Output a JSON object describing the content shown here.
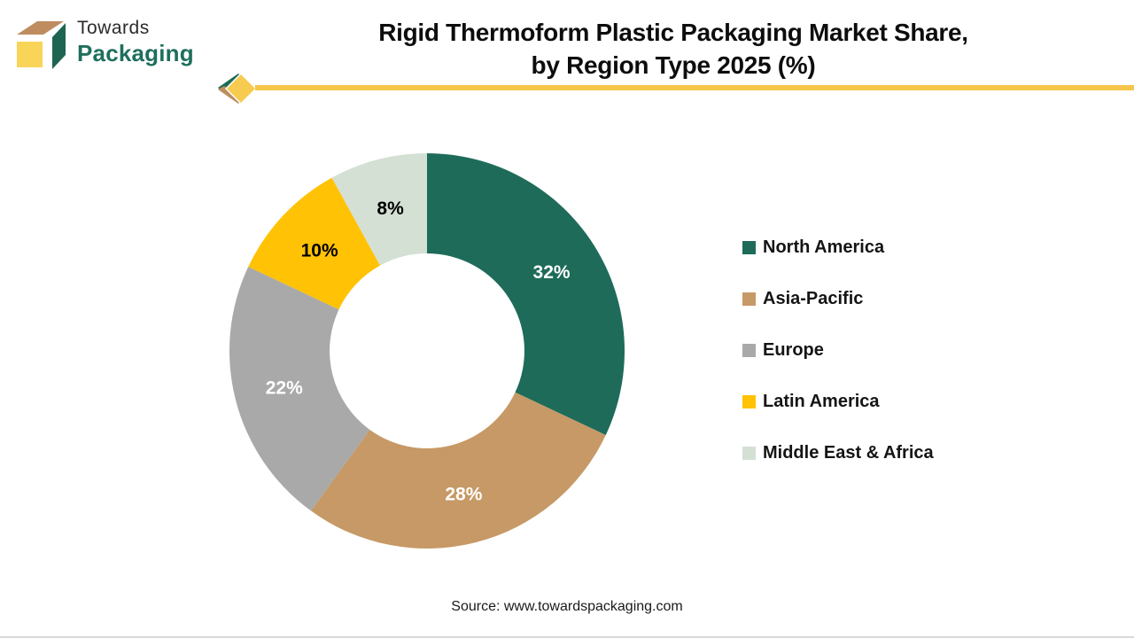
{
  "logo": {
    "line1": "Towards",
    "line2": "Packaging",
    "cube_colors": {
      "top": "#be8c5f",
      "side": "#1e6452",
      "front": "#f8d458"
    }
  },
  "title": {
    "line1": "Rigid Thermoform Plastic Packaging Market Share,",
    "line2": "by Region Type 2025 (%)"
  },
  "divider": {
    "line_color": "#f6c64b",
    "diamond_color": "#f7cb50",
    "chevron_top_color": "#1e6b55",
    "chevron_bottom_color": "#be8e61"
  },
  "chart_data": {
    "type": "pie",
    "subtype": "donut",
    "title": "Rigid Thermoform Plastic Packaging Market Share, by Region Type 2025 (%)",
    "hole_ratio": 0.493,
    "start_angle_deg": 0,
    "direction": "clockwise",
    "legend_position": "right",
    "grid": false,
    "categories": [
      "North America",
      "Asia-Pacific",
      "Europe",
      "Latin America",
      "Middle East & Africa"
    ],
    "values": [
      32,
      28,
      22,
      10,
      8
    ],
    "slices": [
      {
        "label": "North America",
        "value": 32,
        "display": "32%",
        "color": "#1e6b5a",
        "label_color": "#ffffff"
      },
      {
        "label": "Asia-Pacific",
        "value": 28,
        "display": "28%",
        "color": "#c69966",
        "label_color": "#ffffff"
      },
      {
        "label": "Europe",
        "value": 22,
        "display": "22%",
        "color": "#a9a9a9",
        "label_color": "#ffffff"
      },
      {
        "label": "Latin America",
        "value": 10,
        "display": "10%",
        "color": "#ffc205",
        "label_color": "#000000"
      },
      {
        "label": "Middle East & Africa",
        "value": 8,
        "display": "8%",
        "color": "#d4e0d4",
        "label_color": "#000000"
      }
    ]
  },
  "source": {
    "text": "Source: www.towardspackaging.com"
  }
}
